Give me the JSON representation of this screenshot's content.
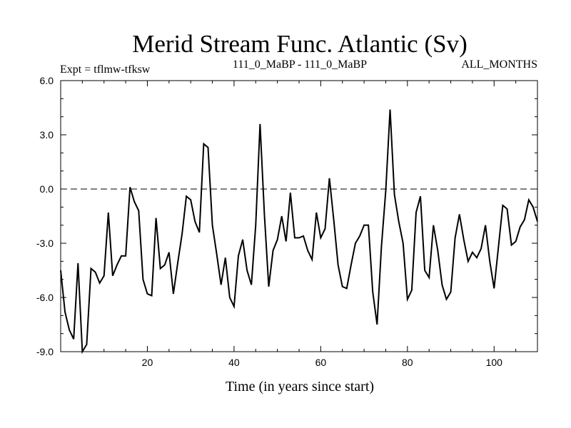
{
  "chart_data": {
    "type": "line",
    "title": "Merid Stream Func. Atlantic (Sv)",
    "subtitle_left": "Expt = tflmw-tfksw",
    "subtitle_center": "111_0_MaBP - 111_0_MaBP",
    "subtitle_right": "ALL_MONTHS",
    "xlabel": "Time (in years since start)",
    "ylabel": "",
    "xlim": [
      0,
      110
    ],
    "ylim": [
      -9,
      6
    ],
    "x_ticks": [
      20,
      40,
      60,
      80,
      100
    ],
    "x_tick_labels": [
      "20",
      "40",
      "60",
      "80",
      "100"
    ],
    "y_ticks": [
      6,
      3,
      0,
      -3,
      -6,
      -9
    ],
    "y_tick_labels": [
      "6.0",
      "3.0",
      "0.0",
      "-3.0",
      "-6.0",
      "-9.0"
    ],
    "reference_line": {
      "y": 0,
      "style": "dashed"
    },
    "series": [
      {
        "name": "Merid Stream Func. Atlantic",
        "color": "#000000",
        "x": [
          0,
          1,
          2,
          3,
          4,
          5,
          6,
          7,
          8,
          9,
          10,
          11,
          12,
          13,
          14,
          15,
          16,
          17,
          18,
          19,
          20,
          21,
          22,
          23,
          24,
          25,
          26,
          27,
          28,
          29,
          30,
          31,
          32,
          33,
          34,
          35,
          36,
          37,
          38,
          39,
          40,
          41,
          42,
          43,
          44,
          45,
          46,
          47,
          48,
          49,
          50,
          51,
          52,
          53,
          54,
          55,
          56,
          57,
          58,
          59,
          60,
          61,
          62,
          63,
          64,
          65,
          66,
          67,
          68,
          69,
          70,
          71,
          72,
          73,
          74,
          75,
          76,
          77,
          78,
          79,
          80,
          81,
          82,
          83,
          84,
          85,
          86,
          87,
          88,
          89,
          90,
          91,
          92,
          93,
          94,
          95,
          96,
          97,
          98,
          99,
          100,
          101,
          102,
          103,
          104,
          105,
          106,
          107,
          108,
          109,
          110
        ],
        "values": [
          -4.5,
          -6.8,
          -7.8,
          -8.3,
          -4.1,
          -9.0,
          -8.6,
          -4.4,
          -4.6,
          -5.2,
          -4.8,
          -1.3,
          -4.8,
          -4.2,
          -3.7,
          -3.7,
          0.1,
          -0.7,
          -1.2,
          -5.0,
          -5.8,
          -5.9,
          -1.6,
          -4.4,
          -4.2,
          -3.5,
          -5.8,
          -4.1,
          -2.5,
          -0.4,
          -0.6,
          -1.8,
          -2.4,
          2.5,
          2.3,
          -2.0,
          -3.6,
          -5.3,
          -3.8,
          -6.0,
          -6.5,
          -3.7,
          -2.8,
          -4.5,
          -5.3,
          -2.0,
          3.6,
          -1.4,
          -5.4,
          -3.4,
          -2.8,
          -1.5,
          -2.9,
          -0.2,
          -2.7,
          -2.7,
          -2.6,
          -3.4,
          -3.9,
          -1.3,
          -2.7,
          -2.2,
          0.6,
          -1.7,
          -4.2,
          -5.4,
          -5.5,
          -4.2,
          -3.0,
          -2.6,
          -2.0,
          -2.0,
          -5.7,
          -7.5,
          -3.2,
          -0.1,
          4.4,
          -0.3,
          -1.8,
          -3.0,
          -6.1,
          -5.6,
          -1.3,
          -0.4,
          -4.5,
          -4.9,
          -2.0,
          -3.4,
          -5.3,
          -6.1,
          -5.7,
          -2.7,
          -1.4,
          -2.8,
          -4.0,
          -3.5,
          -3.8,
          -3.3,
          -2.0,
          -4.0,
          -5.5,
          -3.2,
          -0.9,
          -1.1,
          -3.1,
          -2.9,
          -2.1,
          -1.7,
          -0.6,
          -1.0,
          -1.8
        ]
      }
    ]
  }
}
